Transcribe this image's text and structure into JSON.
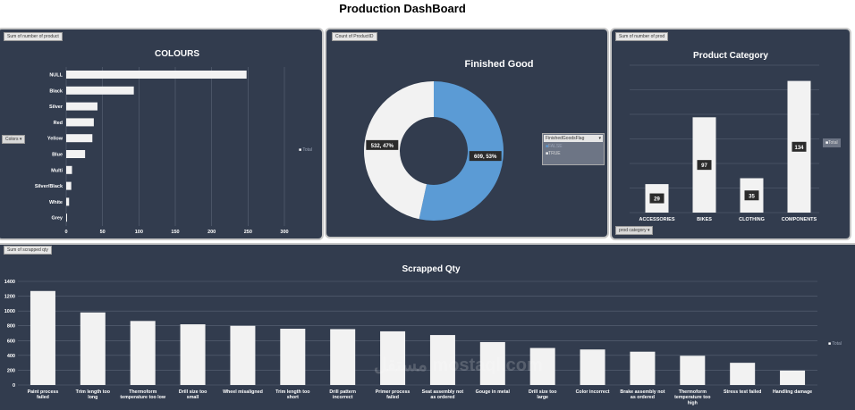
{
  "page_title": "Production DashBoard",
  "watermark": "مستقل mostaql.com",
  "chart_data": [
    {
      "type": "bar",
      "orientation": "horizontal",
      "title": "COLOURS",
      "field_tag": "Sum of number of product",
      "filter_label": "Colors",
      "legend_label": "Total",
      "categories": [
        "NULL",
        "Black",
        "Silver",
        "Red",
        "Yellow",
        "Blue",
        "Multi",
        "Silver/Black",
        "White",
        "Grey"
      ],
      "values": [
        248,
        93,
        43,
        38,
        36,
        26,
        8,
        7,
        4,
        1
      ],
      "ticks": [
        0,
        50,
        100,
        150,
        200,
        250,
        300
      ],
      "xlim": [
        0,
        300
      ],
      "xlabel": "",
      "ylabel": ""
    },
    {
      "type": "pie",
      "style": "donut",
      "title": "Finished Good",
      "field_tag": "Count of ProductID",
      "legend_title": "FinishedGoodsFlag",
      "slices": [
        {
          "name": "FALSE",
          "value": 532,
          "label": "532, 47%",
          "color": "#f2f2f2"
        },
        {
          "name": "TRUE",
          "value": 609,
          "label": "609, 53%",
          "color": "#5b9bd5"
        }
      ]
    },
    {
      "type": "bar",
      "title": "Product Category",
      "field_tag": "Sum of number of prod",
      "filter_label": "prod category",
      "legend_label": "Total",
      "categories": [
        "ACCESSORIES",
        "BIKES",
        "CLOTHING",
        "COMPONENTS"
      ],
      "values": [
        29,
        97,
        35,
        134
      ],
      "ylim": [
        0,
        150
      ]
    },
    {
      "type": "bar",
      "title": "Scrapped Qty",
      "field_tag": "Sum of scrapped qty",
      "legend_label": "Total",
      "categories": [
        "Paint process failed",
        "Trim length too long",
        "Thermoform temperature too low",
        "Drill size too small",
        "Wheel misaligned",
        "Trim length too short",
        "Drill pattern incorrect",
        "Primer process failed",
        "Seat assembly not as ordered",
        "Gouge in metal",
        "Drill size too large",
        "Color incorrect",
        "Brake assembly not as ordered",
        "Thermoform temperature too high",
        "Stress test failed",
        "Handling damage"
      ],
      "values": [
        1270,
        980,
        865,
        820,
        800,
        760,
        755,
        725,
        675,
        580,
        500,
        480,
        450,
        395,
        300,
        195
      ],
      "ticks": [
        0,
        200,
        400,
        600,
        800,
        1000,
        1200,
        1400
      ],
      "ylim": [
        0,
        1400
      ]
    }
  ],
  "colors": {
    "panel_bg": "#323c4e",
    "bar": "#f2f2f2",
    "true_slice": "#5b9bd5",
    "grid": "#5b6577",
    "axis_text": "#ffffff"
  }
}
